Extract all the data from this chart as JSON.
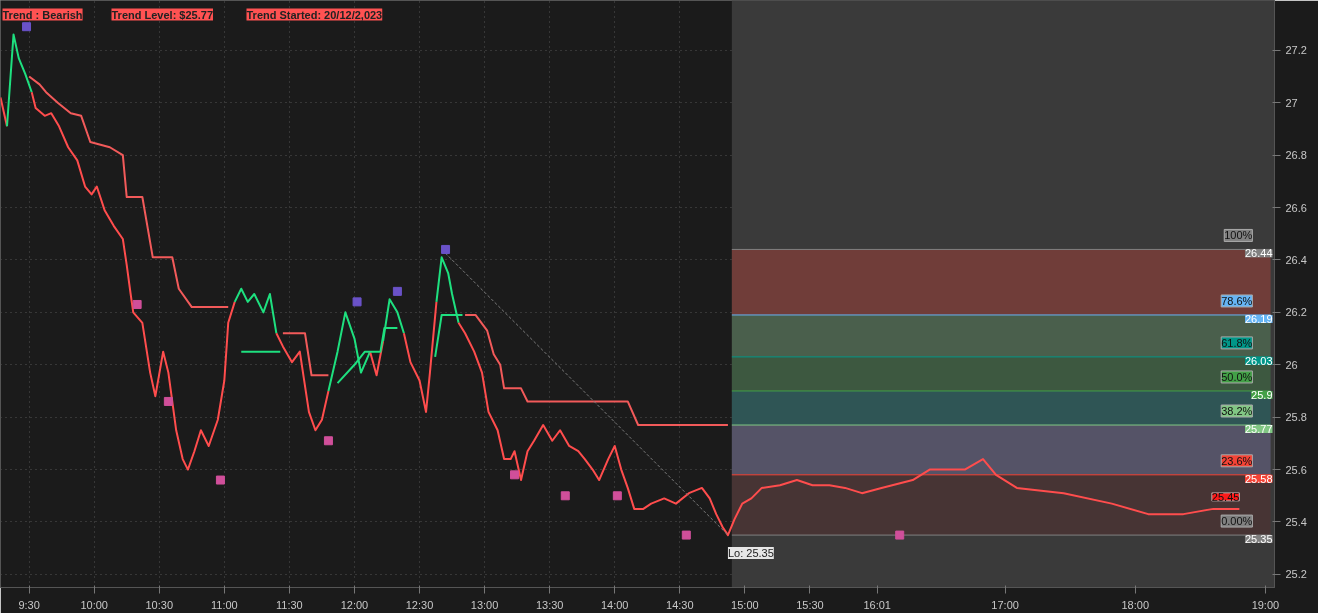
{
  "chart_data": {
    "type": "line",
    "annotations": [
      "Trend : Bearish",
      "Trend Level: $25.77",
      "Trend Started: 20/12/2,023",
      {
        "text": "Lo: 25.35",
        "x": 14.87,
        "y": 25.35
      },
      {
        "text": "25.45",
        "x": 18.8,
        "y": 25.45
      },
      {
        "text": "100%",
        "x": 18.9,
        "y": 26.44
      },
      {
        "text": "78.6%",
        "x": 18.9,
        "y": 26.19
      },
      {
        "text": "61.8%",
        "x": 18.9,
        "y": 26.03
      },
      {
        "text": "50.0%",
        "x": 18.9,
        "y": 25.9
      },
      {
        "text": "38.2%",
        "x": 18.9,
        "y": 25.77
      },
      {
        "text": "23.6%",
        "x": 18.9,
        "y": 25.58
      },
      {
        "text": "0.00%",
        "x": 18.9,
        "y": 25.35
      }
    ],
    "xlim": [
      9.28,
      19.07
    ],
    "ylim": [
      25.15,
      27.39
    ],
    "xticks": [
      {
        "value": 9.5,
        "label": "9:30"
      },
      {
        "value": 10,
        "label": "10:00"
      },
      {
        "value": 10.5,
        "label": "10:30"
      },
      {
        "value": 11,
        "label": "11:00"
      },
      {
        "value": 11.5,
        "label": "11:30"
      },
      {
        "value": 12,
        "label": "12:00"
      },
      {
        "value": 12.5,
        "label": "12:30"
      },
      {
        "value": 13,
        "label": "13:00"
      },
      {
        "value": 13.5,
        "label": "13:30"
      },
      {
        "value": 14,
        "label": "14:00"
      },
      {
        "value": 14.5,
        "label": "14:30"
      },
      {
        "value": 15,
        "label": "15:00"
      },
      {
        "value": 15.5,
        "label": "15:30"
      },
      {
        "value": 16.0167,
        "label": "16:01"
      },
      {
        "value": 17,
        "label": "17:00"
      },
      {
        "value": 18,
        "label": "18:00"
      },
      {
        "value": 19,
        "label": "19:00"
      }
    ],
    "yticks": [
      25.2,
      25.4,
      25.6,
      25.8,
      26,
      26.2,
      26.4,
      26.6,
      26.8,
      27,
      27.2
    ],
    "grid": true,
    "bands": [
      {
        "axis": "x",
        "from": 14.9,
        "to": 19.07,
        "color": "#3a3a3a"
      },
      {
        "axis": "y",
        "from": 26.19,
        "to": 26.44,
        "color": "#7a3e3a"
      },
      {
        "axis": "y",
        "from": 26.03,
        "to": 26.19,
        "color": "#4e6650"
      },
      {
        "axis": "y",
        "from": 25.9,
        "to": 26.03,
        "color": "#3e5e42"
      },
      {
        "axis": "y",
        "from": 25.77,
        "to": 25.9,
        "color": "#2e5a5a"
      },
      {
        "axis": "y",
        "from": 25.58,
        "to": 25.77,
        "color": "#5a5870"
      },
      {
        "axis": "y",
        "from": 25.35,
        "to": 25.58,
        "color": "#4a3434"
      }
    ],
    "ref_lines": [
      {
        "axis": "y",
        "value": 26.44,
        "label": "26.44",
        "color": "#808080"
      },
      {
        "axis": "y",
        "value": 26.19,
        "label": "26.19",
        "color": "#66b5f5"
      },
      {
        "axis": "y",
        "value": 26.03,
        "label": "26.03",
        "color": "#009688"
      },
      {
        "axis": "y",
        "value": 25.9,
        "label": "25.9",
        "color": "#43a047"
      },
      {
        "axis": "y",
        "value": 25.77,
        "label": "25.77",
        "color": "#81c784"
      },
      {
        "axis": "y",
        "value": 25.58,
        "label": "25.58",
        "color": "#f44336"
      },
      {
        "axis": "y",
        "value": 25.35,
        "label": "25.35",
        "color": "#808080"
      }
    ],
    "series": [
      {
        "color": "#ff4d4d",
        "x": [
          9.28,
          9.33
        ],
        "values": [
          27.02,
          26.91
        ]
      },
      {
        "color": "#1ee07f",
        "x": [
          9.33,
          9.38,
          9.42,
          9.47,
          9.52
        ],
        "values": [
          26.91,
          27.26,
          27.17,
          27.11,
          27.04
        ]
      },
      {
        "color": "#ff4d4d",
        "x": [
          9.52,
          9.55,
          9.62,
          9.67,
          9.73,
          9.8,
          9.87,
          9.93,
          9.98,
          10.02,
          10.08,
          10.15,
          10.22,
          10.25,
          10.28,
          10.3,
          10.37,
          10.43,
          10.47,
          10.53,
          10.57,
          10.6,
          10.63,
          10.68,
          10.72,
          10.77,
          10.82,
          10.88,
          10.95,
          11.0,
          11.03,
          11.08
        ],
        "values": [
          27.04,
          26.98,
          26.95,
          26.96,
          26.91,
          26.83,
          26.78,
          26.68,
          26.65,
          26.68,
          26.59,
          26.53,
          26.48,
          26.38,
          26.27,
          26.2,
          26.16,
          25.97,
          25.88,
          26.05,
          25.97,
          25.86,
          25.75,
          25.64,
          25.6,
          25.67,
          25.75,
          25.69,
          25.79,
          25.94,
          26.16,
          26.24
        ]
      },
      {
        "color": "#1ee07f",
        "x": [
          11.08,
          11.13,
          11.18,
          11.23,
          11.3,
          11.35,
          11.4
        ],
        "values": [
          26.24,
          26.29,
          26.24,
          26.27,
          26.2,
          26.27,
          26.12
        ]
      },
      {
        "color": "#ff4d4d",
        "x": [
          11.4,
          11.45,
          11.52,
          11.58,
          11.65,
          11.7,
          11.75,
          11.8
        ],
        "values": [
          26.12,
          26.07,
          26.01,
          26.05,
          25.82,
          25.75,
          25.79,
          25.9
        ]
      },
      {
        "color": "#1ee07f",
        "x": [
          11.8,
          11.87,
          11.93,
          12.0,
          12.05,
          12.12
        ],
        "values": [
          25.9,
          26.05,
          26.2,
          26.1,
          25.97,
          26.05
        ]
      },
      {
        "color": "#ff4d4d",
        "x": [
          12.12,
          12.17,
          12.22
        ],
        "values": [
          26.05,
          25.96,
          26.09
        ]
      },
      {
        "color": "#1ee07f",
        "x": [
          12.22,
          12.27,
          12.33,
          12.38
        ],
        "values": [
          26.09,
          26.25,
          26.2,
          26.12
        ]
      },
      {
        "color": "#ff4d4d",
        "x": [
          12.38,
          12.43,
          12.5,
          12.55,
          12.58,
          12.63
        ],
        "values": [
          26.12,
          26.01,
          25.94,
          25.82,
          25.97,
          26.24
        ]
      },
      {
        "color": "#1ee07f",
        "x": [
          12.63,
          12.67,
          12.72,
          12.75,
          12.8
        ],
        "values": [
          26.24,
          26.41,
          26.35,
          26.27,
          26.16
        ]
      },
      {
        "color": "#ff4d4d",
        "x": [
          12.8,
          12.85,
          12.92,
          12.98,
          13.03,
          13.1,
          13.15,
          13.2,
          13.23,
          13.28,
          13.33,
          13.38,
          13.45,
          13.52,
          13.58,
          13.65,
          13.72,
          13.77,
          13.83,
          13.88,
          13.95,
          14.0,
          14.05,
          14.1,
          14.15,
          14.22,
          14.28,
          14.38,
          14.47,
          14.57,
          14.67,
          14.73,
          14.78,
          14.83,
          14.87,
          14.92,
          14.98,
          15.05,
          15.13,
          15.27,
          15.4,
          15.52,
          15.65,
          15.77,
          15.9,
          16.05,
          16.29,
          16.42,
          16.56,
          16.69,
          16.83,
          16.93,
          17.09,
          17.45,
          17.82,
          18.1,
          18.37,
          18.6,
          18.8
        ],
        "values": [
          26.16,
          26.12,
          26.05,
          25.97,
          25.82,
          25.75,
          25.64,
          25.64,
          25.67,
          25.56,
          25.67,
          25.71,
          25.77,
          25.71,
          25.75,
          25.69,
          25.67,
          25.64,
          25.6,
          25.56,
          25.64,
          25.69,
          25.6,
          25.53,
          25.45,
          25.45,
          25.47,
          25.49,
          25.47,
          25.51,
          25.53,
          25.49,
          25.43,
          25.38,
          25.35,
          25.41,
          25.47,
          25.49,
          25.53,
          25.54,
          25.56,
          25.54,
          25.54,
          25.53,
          25.51,
          25.53,
          25.56,
          25.6,
          25.6,
          25.6,
          25.64,
          25.58,
          25.53,
          25.51,
          25.47,
          25.43,
          25.43,
          25.45,
          25.45
        ]
      },
      {
        "color": "#f25a5a",
        "x": [
          9.5,
          9.58,
          9.63,
          9.72,
          9.82,
          9.9,
          9.97,
          10.12,
          10.22,
          10.25,
          10.37,
          10.45,
          10.6,
          10.65,
          10.75,
          11.03
        ],
        "values": [
          27.1,
          27.07,
          27.04,
          27.0,
          26.96,
          26.95,
          26.85,
          26.83,
          26.8,
          26.64,
          26.64,
          26.41,
          26.41,
          26.29,
          26.22,
          26.22
        ]
      },
      {
        "color": "#1ee07f",
        "x": [
          11.13,
          11.43
        ],
        "values": [
          26.05,
          26.05
        ]
      },
      {
        "color": "#f25a5a",
        "x": [
          11.45,
          11.62,
          11.67,
          11.8
        ],
        "values": [
          26.12,
          26.12,
          25.96,
          25.96
        ]
      },
      {
        "color": "#1ee07f",
        "x": [
          11.87,
          12.0,
          12.08,
          12.2,
          12.23,
          12.33
        ],
        "values": [
          25.93,
          26.0,
          26.05,
          26.05,
          26.14,
          26.14
        ]
      },
      {
        "color": "#1ee07f",
        "x": [
          12.62,
          12.67,
          12.83
        ],
        "values": [
          26.03,
          26.19,
          26.19
        ]
      },
      {
        "color": "#f25a5a",
        "x": [
          12.85,
          12.93,
          13.02,
          13.07,
          13.12,
          13.15,
          13.28,
          13.33,
          14.1,
          14.18,
          14.87
        ],
        "values": [
          26.19,
          26.19,
          26.13,
          26.04,
          26.0,
          25.91,
          25.91,
          25.86,
          25.86,
          25.77,
          25.77
        ]
      },
      {
        "color": "#7a7a7a",
        "line_style": "dashed",
        "x": [
          12.67,
          14.87
        ],
        "values": [
          26.44,
          25.35
        ]
      },
      {
        "type": "scatter",
        "marker": "square",
        "color": "#6a52c8",
        "x": [
          9.48,
          12.02,
          12.33,
          12.7
        ],
        "values": [
          27.29,
          26.24,
          26.28,
          26.44
        ]
      },
      {
        "type": "scatter",
        "marker": "square",
        "color": "#d04f9a",
        "x": [
          10.33,
          10.57,
          10.97,
          11.8,
          13.23,
          13.62,
          14.02,
          14.55,
          16.19
        ],
        "values": [
          26.23,
          25.86,
          25.56,
          25.71,
          25.58,
          25.5,
          25.5,
          25.35,
          25.35
        ]
      }
    ]
  }
}
